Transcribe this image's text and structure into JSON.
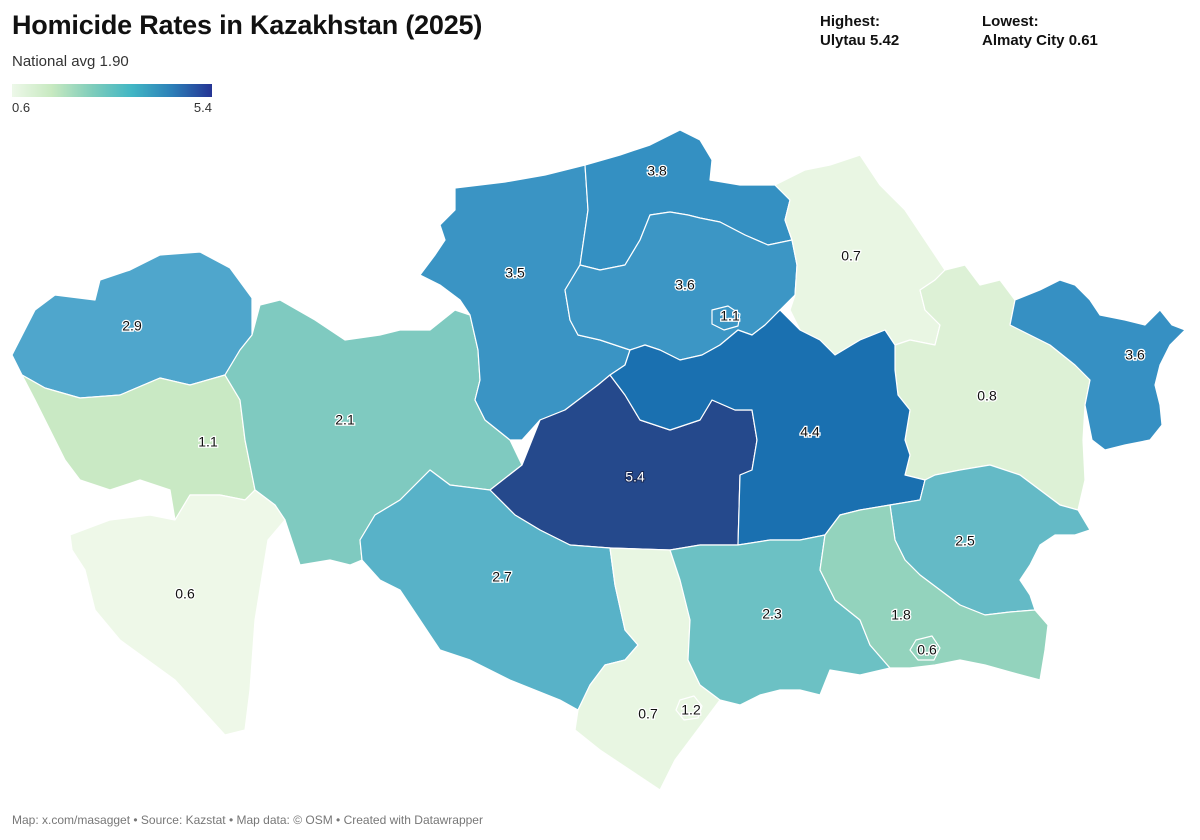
{
  "title": "Homicide Rates in Kazakhstan (2025)",
  "subtitle": "National avg 1.90",
  "legend": {
    "min_label": "0.6",
    "max_label": "5.4",
    "colors": [
      "#edf8e9",
      "#c7e9c0",
      "#7fcdbb",
      "#41b6c4",
      "#2c7fb8",
      "#253494"
    ]
  },
  "highest": {
    "label": "Highest:",
    "value": "Ulytau 5.42"
  },
  "lowest": {
    "label": "Lowest:",
    "value": "Almaty City 0.61"
  },
  "footer": "Map: x.com/masagget • Source: Kazstat • Map data: © OSM  • Created with Datawrapper",
  "regions": [
    {
      "id": "west-kazakhstan",
      "value": "2.9",
      "fill": "#4fa6cc"
    },
    {
      "id": "atyrau",
      "value": "1.1",
      "fill": "#c9e9c4"
    },
    {
      "id": "aktobe",
      "value": "2.1",
      "fill": "#7fcac0"
    },
    {
      "id": "mangystau",
      "value": "0.6",
      "fill": "#eef8e8"
    },
    {
      "id": "kostanay",
      "value": "3.5",
      "fill": "#3a94c4"
    },
    {
      "id": "north-kazakhstan",
      "value": "3.8",
      "fill": "#3490c2"
    },
    {
      "id": "akmola",
      "value": "3.6",
      "fill": "#3c96c5"
    },
    {
      "id": "astana",
      "value": "1.1",
      "fill": "#3c96c5"
    },
    {
      "id": "pavlodar",
      "value": "0.7",
      "fill": "#e9f6e3"
    },
    {
      "id": "east-kazakhstan",
      "value": "0.8",
      "fill": "#ddf1d6"
    },
    {
      "id": "abai",
      "value": "3.6",
      "fill": "#3690c3"
    },
    {
      "id": "ulytau",
      "value": "5.4",
      "fill": "#25498c"
    },
    {
      "id": "karaganda",
      "value": "4.4",
      "fill": "#1a70b0"
    },
    {
      "id": "kyzylorda",
      "value": "2.7",
      "fill": "#58b2c8"
    },
    {
      "id": "turkistan",
      "value": "0.7",
      "fill": "#e8f6e2"
    },
    {
      "id": "shymkent",
      "value": "1.2",
      "fill": "#e8f6e2"
    },
    {
      "id": "zhambyl",
      "value": "2.3",
      "fill": "#6cc1c4"
    },
    {
      "id": "zhetisu",
      "value": "2.5",
      "fill": "#64bac6"
    },
    {
      "id": "almaty-region",
      "value": "1.8",
      "fill": "#93d3bd"
    },
    {
      "id": "almaty-city",
      "value": "0.6",
      "fill": "#93d3bd"
    }
  ]
}
